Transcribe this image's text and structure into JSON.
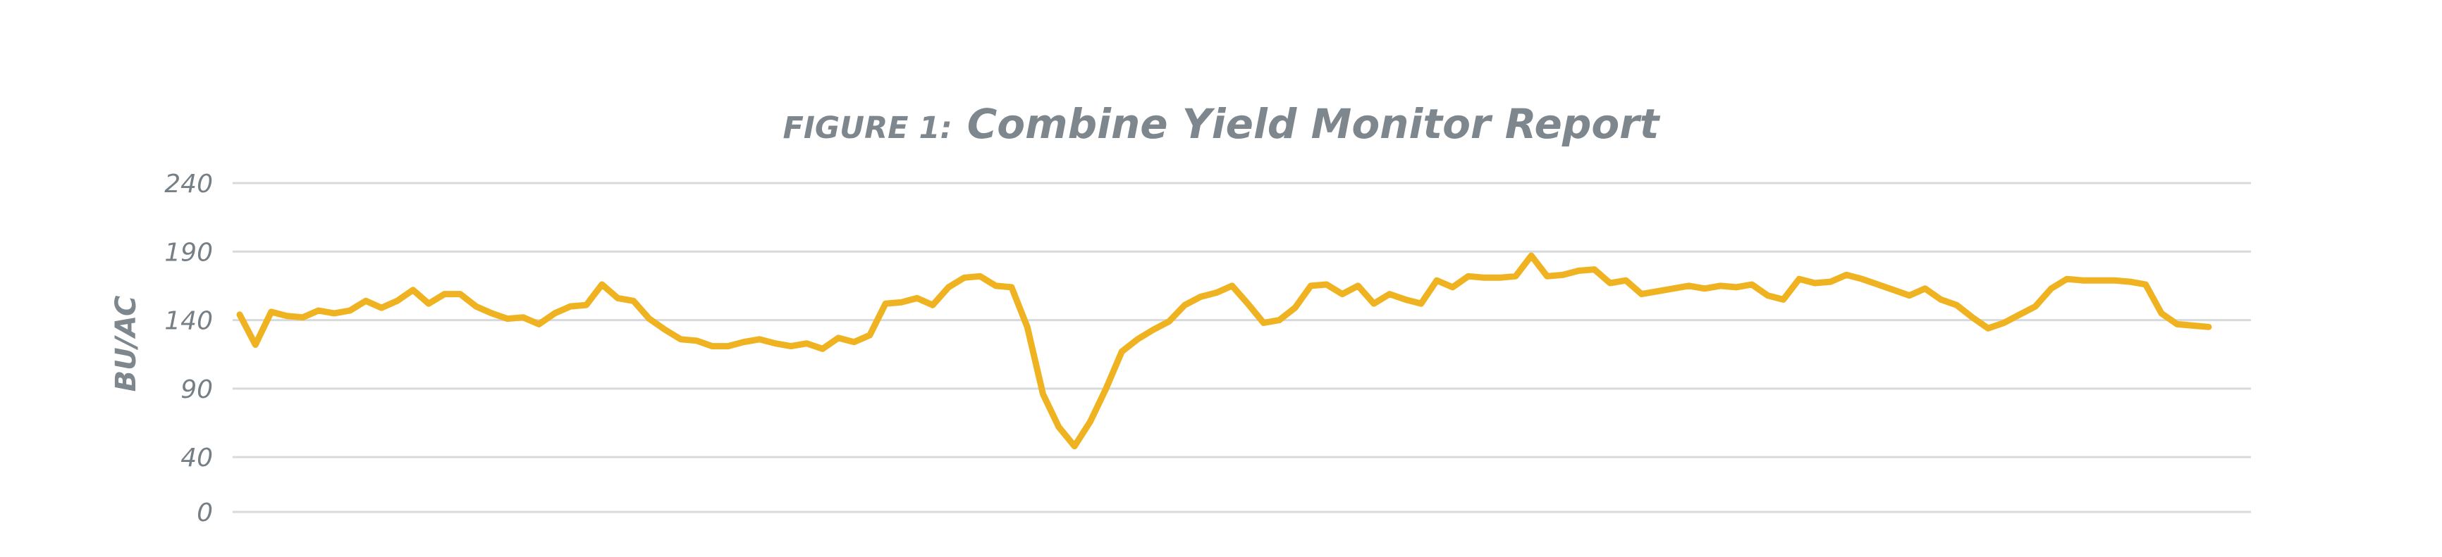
{
  "chart_data": {
    "type": "line",
    "title_prefix": "FIGURE 1:",
    "title": "Combine Yield Monitor Report",
    "xlabel": "",
    "ylabel": "BU/AC",
    "yticks": [
      0,
      40,
      90,
      140,
      190,
      240
    ],
    "ylim": [
      0,
      240
    ],
    "grid": true,
    "series": [
      {
        "color": "#efb321",
        "values": [
          144,
          122,
          146,
          143,
          142,
          147,
          145,
          147,
          154,
          149,
          154,
          162,
          152,
          159,
          159,
          150,
          145,
          141,
          142,
          137,
          145,
          150,
          151,
          166,
          156,
          154,
          141,
          133,
          126,
          125,
          121,
          121,
          124,
          126,
          123,
          121,
          123,
          119,
          127,
          124,
          129,
          152,
          153,
          156,
          151,
          164,
          171,
          172,
          165,
          164,
          135,
          86,
          62,
          48,
          66,
          90,
          117,
          126,
          133,
          139,
          151,
          157,
          160,
          165,
          152,
          138,
          140,
          149,
          165,
          166,
          159,
          165,
          152,
          159,
          155,
          152,
          169,
          164,
          172,
          171,
          171,
          172,
          187,
          172,
          173,
          176,
          177,
          167,
          169,
          159,
          161,
          163,
          165,
          163,
          165,
          164,
          166,
          158,
          155,
          170,
          167,
          168,
          173,
          170,
          166,
          162,
          158,
          163,
          155,
          151,
          142,
          134,
          138,
          144,
          150,
          163,
          170,
          169,
          169,
          169,
          168,
          166,
          145,
          137,
          136,
          135
        ]
      }
    ]
  }
}
